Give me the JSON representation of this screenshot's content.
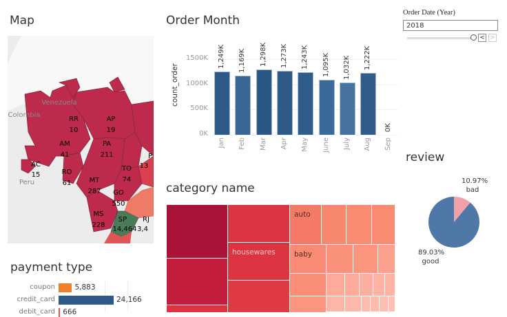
{
  "map": {
    "title": "Map",
    "countries": [
      "Colombia",
      "Venezuela",
      "Peru"
    ],
    "states": [
      {
        "code": "RR",
        "value": "10"
      },
      {
        "code": "AP",
        "value": "19"
      },
      {
        "code": "AM",
        "value": "41"
      },
      {
        "code": "PA",
        "value": "211"
      },
      {
        "code": "AC",
        "value": "15"
      },
      {
        "code": "RO",
        "value": "61"
      },
      {
        "code": "TO",
        "value": "74"
      },
      {
        "code": "MT",
        "value": "287"
      },
      {
        "code": "GO",
        "value": "550"
      },
      {
        "code": "MS",
        "value": "228"
      },
      {
        "code": "SP",
        "value": "14,464"
      },
      {
        "code": "P",
        "value": "13"
      },
      {
        "code": "RJ",
        "value": "3,4"
      }
    ],
    "colors": {
      "low": "#be2a4c",
      "mid": "#f07a68",
      "high": "#4a7d57",
      "mid2": "#e05555"
    }
  },
  "order_month": {
    "title": "Order Month",
    "chart_data": {
      "type": "bar",
      "ylabel": "count_order",
      "categories": [
        "Jan",
        "Feb",
        "Mar",
        "Apr",
        "May",
        "June",
        "July",
        "Aug",
        "Sep"
      ],
      "values": [
        1249,
        1169,
        1298,
        1273,
        1243,
        1095,
        1032,
        1222,
        0
      ],
      "value_labels": [
        "1,249K",
        "1,169K",
        "1,298K",
        "1,273K",
        "1,243K",
        "1,095K",
        "1,032K",
        "1,222K",
        "0K"
      ],
      "yticks": [
        "0K",
        "500K",
        "1000K",
        "1500K"
      ],
      "ytick_values": [
        0,
        500,
        1000,
        1500
      ],
      "ylim": [
        0,
        1750
      ],
      "colors": [
        "#2d5a87",
        "#386795",
        "#2b5784",
        "#2e5a88",
        "#305c89",
        "#3b6a98",
        "#45729f",
        "#305c89",
        "#2d5a87"
      ]
    }
  },
  "filter": {
    "label": "Order Date (Year)",
    "value": "2018",
    "prev": "<",
    "next": ">"
  },
  "review": {
    "title": "review",
    "chart_data": {
      "type": "pie",
      "slices": [
        {
          "name": "bad",
          "value": 10.97,
          "label": "10.97%",
          "color": "#f4a0a8"
        },
        {
          "name": "good",
          "value": 89.03,
          "label": "89.03%",
          "color": "#4e79a7"
        }
      ]
    }
  },
  "category": {
    "title": "category name",
    "labels": {
      "housewares": "housewares",
      "auto": "auto",
      "baby": "baby"
    }
  },
  "payment": {
    "title": "payment type",
    "chart_data": {
      "type": "bar",
      "orientation": "horizontal",
      "categories": [
        "coupon",
        "credit_card",
        "debit_card"
      ],
      "values": [
        5883,
        24166,
        666
      ],
      "value_labels": [
        "5,883",
        "24,166",
        "666"
      ],
      "colors": [
        "#f07f2c",
        "#2d5a87",
        "#e05555"
      ]
    }
  }
}
